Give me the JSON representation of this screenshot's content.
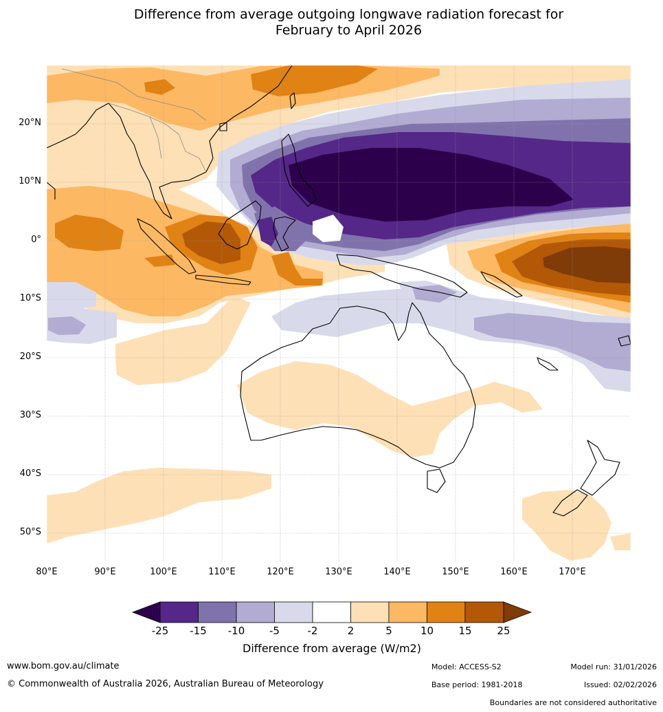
{
  "title": {
    "line1": "Difference from average outgoing longwave radiation forecast for",
    "line2": "February to April 2026"
  },
  "map": {
    "lat_labels": [
      "20°N",
      "10°N",
      "0°",
      "10°S",
      "20°S",
      "30°S",
      "40°S",
      "50°S"
    ],
    "lon_labels": [
      "80°E",
      "90°E",
      "100°E",
      "110°E",
      "120°E",
      "130°E",
      "140°E",
      "150°E",
      "160°E",
      "170°E"
    ],
    "lon_range": [
      80,
      180
    ],
    "lat_range": [
      -55,
      30
    ]
  },
  "colorbar": {
    "ticks": [
      "-25",
      "-15",
      "-10",
      "-5",
      "-2",
      "2",
      "5",
      "10",
      "15",
      "25"
    ],
    "label": "Difference from average (W/m2)",
    "colors": {
      "below_min": "#2d004b",
      "c1": "#542788",
      "c2": "#8073ac",
      "c3": "#b2abd2",
      "c4": "#d8daeb",
      "c5": "#ffffff",
      "c6": "#fee0b6",
      "c7": "#fdb863",
      "c8": "#e08214",
      "c9": "#b35806",
      "above_max": "#7f3b08"
    }
  },
  "footer": {
    "website": "www.bom.gov.au/climate",
    "copyright": "© Commonwealth of Australia 2026, Australian Bureau of Meteorology",
    "model": "Model: ACCESS-S2",
    "base_period": "Base period: 1981-2018",
    "model_run": "Model run: 31/01/2026",
    "issued": "Issued: 02/02/2026",
    "disclaimer": "Boundaries are not considered authoritative"
  }
}
